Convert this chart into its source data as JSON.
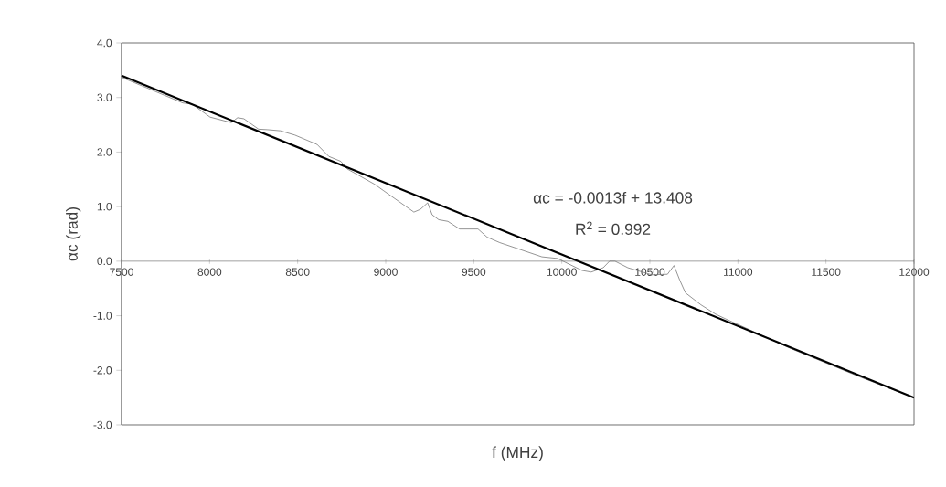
{
  "chart_data": {
    "type": "line",
    "xlabel": "f (MHz)",
    "ylabel": "αc (rad)",
    "annotations": [
      "αc = -0.0013f + 13.408",
      "R$^{2}$ = 0.992"
    ],
    "xlim": [
      7500,
      12000
    ],
    "ylim": [
      -3,
      4
    ],
    "xticks": [
      7500,
      8000,
      8500,
      9000,
      9500,
      10000,
      10500,
      11000,
      11500,
      12000
    ],
    "yticks": [
      {
        "value": -3,
        "label": "-3.0"
      },
      {
        "value": -2,
        "label": "-2.0"
      },
      {
        "value": -1,
        "label": "-1.0"
      },
      {
        "value": 0,
        "label": "0.0"
      },
      {
        "value": 1,
        "label": "1.0"
      },
      {
        "value": 2,
        "label": "2.0"
      },
      {
        "value": 3,
        "label": "3.0"
      },
      {
        "value": 4,
        "label": "4.0"
      }
    ],
    "line_style": "solid",
    "marker": "none",
    "series": [
      {
        "color": "#7a7a7a",
        "x": [
          7500,
          7848,
          7900,
          8003,
          8123,
          8159,
          8195,
          8278,
          8330,
          8402,
          8485,
          8610,
          8677,
          8745,
          8782,
          8937,
          8989,
          9160,
          9197,
          9238,
          9264,
          9301,
          9353,
          9420,
          9498,
          9524,
          9576,
          9648,
          9887,
          9975,
          10115,
          10167,
          10235,
          10271,
          10302,
          10375,
          10510,
          10600,
          10637,
          10670,
          10702,
          10790,
          10873,
          10925,
          11300,
          11700,
          12000
        ],
        "values": [
          3.37,
          2.9,
          2.88,
          2.64,
          2.54,
          2.63,
          2.61,
          2.42,
          2.41,
          2.39,
          2.31,
          2.14,
          1.92,
          1.83,
          1.69,
          1.41,
          1.29,
          0.9,
          0.95,
          1.07,
          0.85,
          0.76,
          0.73,
          0.59,
          0.59,
          0.59,
          0.44,
          0.34,
          0.08,
          0.05,
          -0.17,
          -0.2,
          -0.12,
          0.0,
          0.0,
          -0.12,
          -0.25,
          -0.24,
          -0.08,
          -0.35,
          -0.58,
          -0.8,
          -0.97,
          -1.05,
          -1.6,
          -2.13,
          -2.5
        ]
      },
      {
        "type": "line",
        "color": "#000000",
        "x": [
          7500,
          12000
        ],
        "values": [
          3.4,
          -2.5
        ]
      }
    ]
  }
}
